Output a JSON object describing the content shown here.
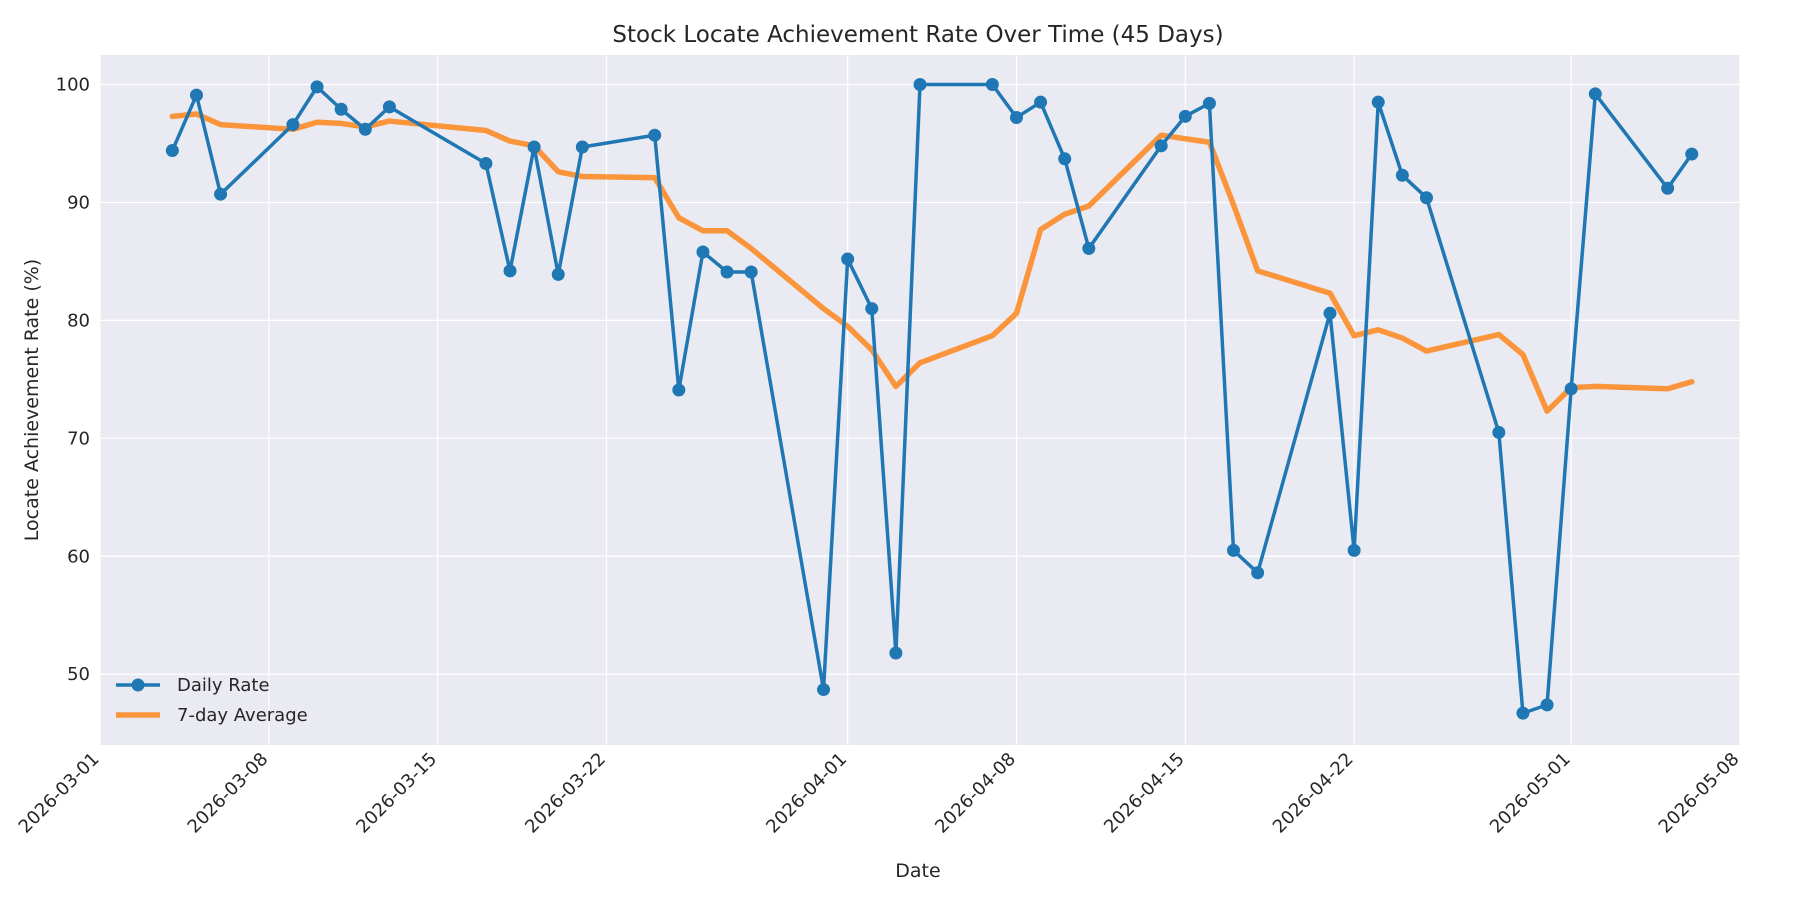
{
  "chart_data": {
    "type": "line",
    "title": "Stock Locate Achievement Rate Over Time (45 Days)",
    "xlabel": "Date",
    "ylabel": "Locate Achievement Rate (%)",
    "xlim": [
      "2026-03-01",
      "2026-05-08"
    ],
    "ylim": [
      44,
      102.5
    ],
    "x_ticks": [
      "2026-03-01",
      "2026-03-08",
      "2026-03-15",
      "2026-03-22",
      "2026-04-01",
      "2026-04-08",
      "2026-04-15",
      "2026-04-22",
      "2026-05-01",
      "2026-05-08"
    ],
    "y_ticks": [
      50,
      60,
      70,
      80,
      90,
      100
    ],
    "grid": true,
    "legend_position": "lower-left",
    "series": [
      {
        "name": "Daily Rate",
        "color": "#1f77b4",
        "marker": "circle",
        "points": [
          [
            "2026-03-04",
            94.4
          ],
          [
            "2026-03-05",
            99.1
          ],
          [
            "2026-03-06",
            90.7
          ],
          [
            "2026-03-09",
            96.6
          ],
          [
            "2026-03-10",
            99.8
          ],
          [
            "2026-03-11",
            97.9
          ],
          [
            "2026-03-12",
            96.2
          ],
          [
            "2026-03-13",
            98.1
          ],
          [
            "2026-03-17",
            93.3
          ],
          [
            "2026-03-18",
            84.2
          ],
          [
            "2026-03-19",
            94.7
          ],
          [
            "2026-03-20",
            83.9
          ],
          [
            "2026-03-21",
            94.7
          ],
          [
            "2026-03-24",
            95.7
          ],
          [
            "2026-03-25",
            74.1
          ],
          [
            "2026-03-26",
            85.8
          ],
          [
            "2026-03-27",
            84.1
          ],
          [
            "2026-03-28",
            84.1
          ],
          [
            "2026-03-31",
            48.7
          ],
          [
            "2026-04-01",
            85.2
          ],
          [
            "2026-04-02",
            81.0
          ],
          [
            "2026-04-03",
            51.8
          ],
          [
            "2026-04-04",
            100.0
          ],
          [
            "2026-04-07",
            100.0
          ],
          [
            "2026-04-08",
            97.2
          ],
          [
            "2026-04-09",
            98.5
          ],
          [
            "2026-04-10",
            93.7
          ],
          [
            "2026-04-11",
            86.1
          ],
          [
            "2026-04-14",
            94.8
          ],
          [
            "2026-04-15",
            97.3
          ],
          [
            "2026-04-16",
            98.4
          ],
          [
            "2026-04-17",
            60.5
          ],
          [
            "2026-04-18",
            58.6
          ],
          [
            "2026-04-21",
            80.6
          ],
          [
            "2026-04-22",
            60.5
          ],
          [
            "2026-04-23",
            98.5
          ],
          [
            "2026-04-24",
            92.3
          ],
          [
            "2026-04-25",
            90.4
          ],
          [
            "2026-04-28",
            70.5
          ],
          [
            "2026-04-29",
            46.7
          ],
          [
            "2026-04-30",
            47.4
          ],
          [
            "2026-05-01",
            74.2
          ],
          [
            "2026-05-02",
            99.2
          ],
          [
            "2026-05-05",
            91.2
          ],
          [
            "2026-05-06",
            94.1
          ]
        ]
      },
      {
        "name": "7-day Average",
        "color": "#ff7f0e",
        "marker": "none",
        "points": [
          [
            "2026-03-04",
            97.3
          ],
          [
            "2026-03-05",
            97.5
          ],
          [
            "2026-03-06",
            96.6
          ],
          [
            "2026-03-09",
            96.2
          ],
          [
            "2026-03-10",
            96.8
          ],
          [
            "2026-03-11",
            96.7
          ],
          [
            "2026-03-12",
            96.4
          ],
          [
            "2026-03-13",
            96.9
          ],
          [
            "2026-03-17",
            96.1
          ],
          [
            "2026-03-18",
            95.2
          ],
          [
            "2026-03-19",
            94.8
          ],
          [
            "2026-03-20",
            92.6
          ],
          [
            "2026-03-21",
            92.2
          ],
          [
            "2026-03-24",
            92.1
          ],
          [
            "2026-03-25",
            88.7
          ],
          [
            "2026-03-26",
            87.6
          ],
          [
            "2026-03-27",
            87.6
          ],
          [
            "2026-03-28",
            86.1
          ],
          [
            "2026-03-31",
            81.0
          ],
          [
            "2026-04-01",
            79.5
          ],
          [
            "2026-04-02",
            77.5
          ],
          [
            "2026-04-03",
            74.4
          ],
          [
            "2026-04-04",
            76.4
          ],
          [
            "2026-04-07",
            78.7
          ],
          [
            "2026-04-08",
            80.6
          ],
          [
            "2026-04-09",
            87.7
          ],
          [
            "2026-04-10",
            89.0
          ],
          [
            "2026-04-11",
            89.7
          ],
          [
            "2026-04-14",
            95.7
          ],
          [
            "2026-04-15",
            95.4
          ],
          [
            "2026-04-16",
            95.1
          ],
          [
            "2026-04-17",
            89.8
          ],
          [
            "2026-04-18",
            84.2
          ],
          [
            "2026-04-21",
            82.3
          ],
          [
            "2026-04-22",
            78.7
          ],
          [
            "2026-04-23",
            79.2
          ],
          [
            "2026-04-24",
            78.5
          ],
          [
            "2026-04-25",
            77.4
          ],
          [
            "2026-04-28",
            78.8
          ],
          [
            "2026-04-29",
            77.1
          ],
          [
            "2026-04-30",
            72.3
          ],
          [
            "2026-05-01",
            74.3
          ],
          [
            "2026-05-02",
            74.4
          ],
          [
            "2026-05-05",
            74.2
          ],
          [
            "2026-05-06",
            74.8
          ]
        ]
      }
    ]
  },
  "colors": {
    "plot_background": "#eaeaf2",
    "grid": "#ffffff",
    "daily_rate": "#1f77b4",
    "seven_day_average": "#ff7f0e"
  }
}
